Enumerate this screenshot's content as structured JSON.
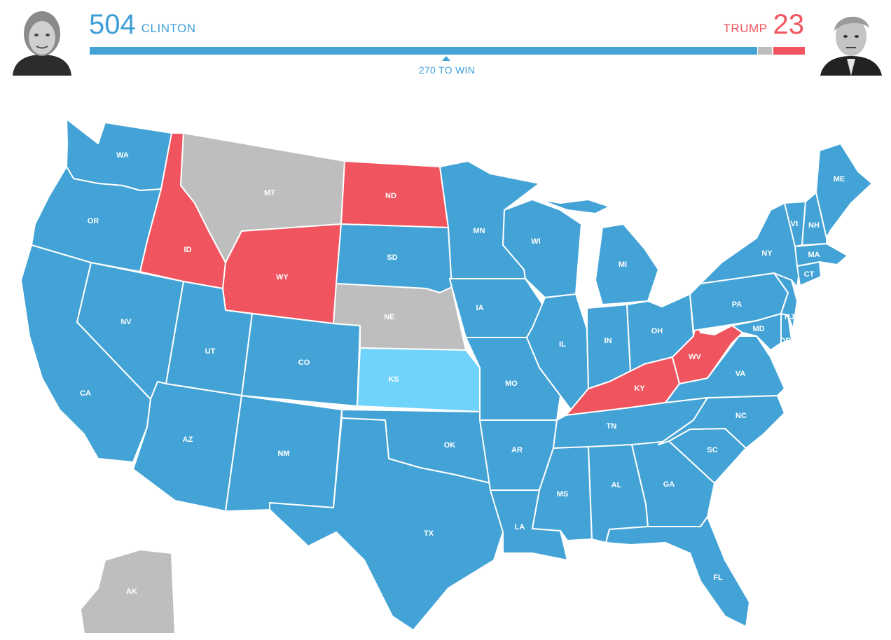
{
  "header": {
    "clinton": {
      "votes": "504",
      "name": "CLINTON"
    },
    "trump": {
      "votes": "23",
      "name": "TRUMP"
    },
    "threshold_label": "270 TO WIN",
    "electoral_split": {
      "clinton": 504,
      "undecided": 11,
      "trump": 23
    }
  },
  "colors": {
    "clinton": "#43a3d6",
    "lean_clinton": "#6fd3fb",
    "trump": "#f0545e",
    "undecided": "#bebebe",
    "border": "#ffffff"
  },
  "states": {
    "WA": {
      "label": "WA",
      "winner": "clinton"
    },
    "OR": {
      "label": "OR",
      "winner": "clinton"
    },
    "CA": {
      "label": "CA",
      "winner": "clinton"
    },
    "NV": {
      "label": "NV",
      "winner": "clinton"
    },
    "ID": {
      "label": "ID",
      "winner": "trump"
    },
    "MT": {
      "label": "MT",
      "winner": "undecided"
    },
    "WY": {
      "label": "WY",
      "winner": "trump"
    },
    "UT": {
      "label": "UT",
      "winner": "clinton"
    },
    "AZ": {
      "label": "AZ",
      "winner": "clinton"
    },
    "CO": {
      "label": "CO",
      "winner": "clinton"
    },
    "NM": {
      "label": "NM",
      "winner": "clinton"
    },
    "ND": {
      "label": "ND",
      "winner": "trump"
    },
    "SD": {
      "label": "SD",
      "winner": "clinton"
    },
    "NE": {
      "label": "NE",
      "winner": "undecided"
    },
    "KS": {
      "label": "KS",
      "winner": "lean_clinton"
    },
    "OK": {
      "label": "OK",
      "winner": "clinton"
    },
    "TX": {
      "label": "TX",
      "winner": "clinton"
    },
    "MN": {
      "label": "MN",
      "winner": "clinton"
    },
    "IA": {
      "label": "IA",
      "winner": "clinton"
    },
    "MO": {
      "label": "MO",
      "winner": "clinton"
    },
    "AR": {
      "label": "AR",
      "winner": "clinton"
    },
    "LA": {
      "label": "LA",
      "winner": "clinton"
    },
    "WI": {
      "label": "WI",
      "winner": "clinton"
    },
    "IL": {
      "label": "IL",
      "winner": "clinton"
    },
    "MI": {
      "label": "MI",
      "winner": "clinton"
    },
    "IN": {
      "label": "IN",
      "winner": "clinton"
    },
    "OH": {
      "label": "OH",
      "winner": "clinton"
    },
    "KY": {
      "label": "KY",
      "winner": "trump"
    },
    "TN": {
      "label": "TN",
      "winner": "clinton"
    },
    "MS": {
      "label": "MS",
      "winner": "clinton"
    },
    "AL": {
      "label": "AL",
      "winner": "clinton"
    },
    "GA": {
      "label": "GA",
      "winner": "clinton"
    },
    "FL": {
      "label": "FL",
      "winner": "clinton"
    },
    "SC": {
      "label": "SC",
      "winner": "clinton"
    },
    "NC": {
      "label": "NC",
      "winner": "clinton"
    },
    "VA": {
      "label": "VA",
      "winner": "clinton"
    },
    "WV": {
      "label": "WV",
      "winner": "trump"
    },
    "PA": {
      "label": "PA",
      "winner": "clinton"
    },
    "NY": {
      "label": "NY",
      "winner": "clinton"
    },
    "NJ": {
      "label": "NJ",
      "winner": "clinton"
    },
    "MD": {
      "label": "MD",
      "winner": "clinton"
    },
    "DE": {
      "label": "DE",
      "winner": "clinton"
    },
    "CT": {
      "label": "CT",
      "winner": "clinton"
    },
    "MA": {
      "label": "MA",
      "winner": "clinton"
    },
    "VT": {
      "label": "Vt",
      "winner": "clinton"
    },
    "NH": {
      "label": "NH",
      "winner": "clinton"
    },
    "ME": {
      "label": "ME",
      "winner": "clinton"
    },
    "AK": {
      "label": "AK",
      "winner": "undecided"
    }
  }
}
